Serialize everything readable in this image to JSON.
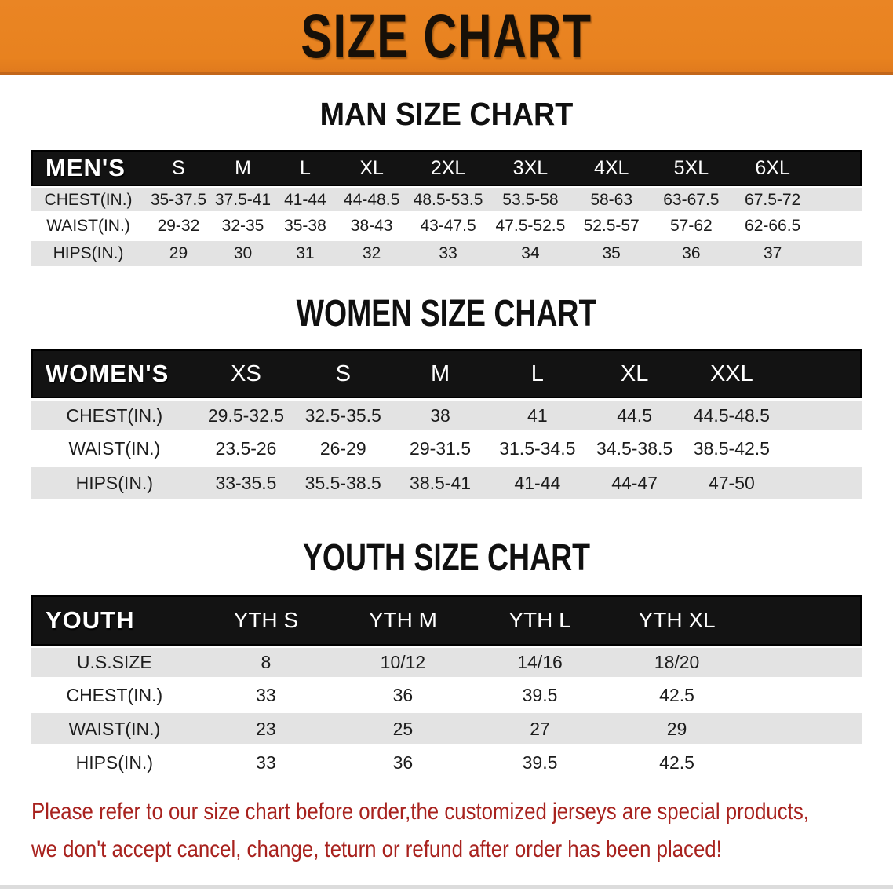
{
  "banner": {
    "title": "SIZE CHART"
  },
  "sections": {
    "man": {
      "heading": "MAN SIZE CHART",
      "table": {
        "label": "MEN'S",
        "sizes": [
          "S",
          "M",
          "L",
          "XL",
          "2XL",
          "3XL",
          "4XL",
          "5XL",
          "6XL"
        ],
        "rows": [
          {
            "label": "CHEST(IN.)",
            "values": [
              "35-37.5",
              "37.5-41",
              "41-44",
              "44-48.5",
              "48.5-53.5",
              "53.5-58",
              "58-63",
              "63-67.5",
              "67.5-72"
            ]
          },
          {
            "label": "WAIST(IN.)",
            "values": [
              "29-32",
              "32-35",
              "35-38",
              "38-43",
              "43-47.5",
              "47.5-52.5",
              "52.5-57",
              "57-62",
              "62-66.5"
            ]
          },
          {
            "label": "HIPS(IN.)",
            "values": [
              "29",
              "30",
              "31",
              "32",
              "33",
              "34",
              "35",
              "36",
              "37"
            ]
          }
        ]
      }
    },
    "women": {
      "heading": "WOMEN SIZE CHART",
      "table": {
        "label": "WOMEN'S",
        "sizes": [
          "XS",
          "S",
          "M",
          "L",
          "XL",
          "XXL"
        ],
        "rows": [
          {
            "label": "CHEST(IN.)",
            "values": [
              "29.5-32.5",
              "32.5-35.5",
              "38",
              "41",
              "44.5",
              "44.5-48.5"
            ]
          },
          {
            "label": "WAIST(IN.)",
            "values": [
              "23.5-26",
              "26-29",
              "29-31.5",
              "31.5-34.5",
              "34.5-38.5",
              "38.5-42.5"
            ]
          },
          {
            "label": "HIPS(IN.)",
            "values": [
              "33-35.5",
              "35.5-38.5",
              "38.5-41",
              "41-44",
              "44-47",
              "47-50"
            ]
          }
        ]
      }
    },
    "youth": {
      "heading": "YOUTH SIZE CHART",
      "table": {
        "label": "YOUTH",
        "sizes": [
          "YTH S",
          "YTH M",
          "YTH L",
          "YTH XL"
        ],
        "rows": [
          {
            "label": "U.S.SIZE",
            "values": [
              "8",
              "10/12",
              "14/16",
              "18/20"
            ]
          },
          {
            "label": "CHEST(IN.)",
            "values": [
              "33",
              "36",
              "39.5",
              "42.5"
            ]
          },
          {
            "label": "WAIST(IN.)",
            "values": [
              "23",
              "25",
              "27",
              "29"
            ]
          },
          {
            "label": "HIPS(IN.)",
            "values": [
              "33",
              "36",
              "39.5",
              "42.5"
            ]
          }
        ]
      }
    }
  },
  "footer": {
    "line1": "Please refer to our size chart before order,the customized jerseys are special products,",
    "line2": "we don't accept cancel, change, teturn or refund after order has been placed!"
  },
  "colors": {
    "banner_orange": "#e8821f",
    "banner_text": "#171008",
    "header_bar_black": "#131313",
    "row_gray": "#e3e3e3",
    "notice_red": "#a8221e"
  }
}
